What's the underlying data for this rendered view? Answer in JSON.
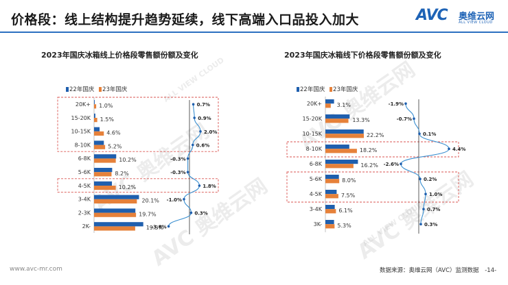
{
  "title": "价格段：线上结构提升趋势延续，线下高端入口品投入加大",
  "logo": {
    "mark": "AVC",
    "name": "奥维云网",
    "tagline": "ALL VIEW CLOUD"
  },
  "watermark": [
    "AVC 奥维云网",
    "ALL VIEW CLOUD"
  ],
  "footer": {
    "website": "www.avc-mr.com",
    "source": "数据来源：奥维云网（AVC）监测数据",
    "page": "-14-"
  },
  "colors": {
    "s22": "#1f5fae",
    "s23": "#e6813a",
    "line": "#3a8fd0",
    "highlight": "#d9534f",
    "axis": "#333333"
  },
  "chart_data": [
    {
      "type": "bar",
      "title": "2023年国庆冰箱线上价格段零售额份额及变化",
      "categories": [
        "20K+",
        "15-20K",
        "10-15K",
        "8-10K",
        "6-8K",
        "5-6K",
        "4-5K",
        "3-4K",
        "2-3K",
        "2K-"
      ],
      "series": [
        {
          "name": "22年国庆",
          "values": [
            0.3,
            0.6,
            2.6,
            4.6,
            10.4,
            8.5,
            8.4,
            21.1,
            19.4,
            23.1
          ]
        },
        {
          "name": "23年国庆",
          "values": [
            1.0,
            1.5,
            4.6,
            5.2,
            10.2,
            8.2,
            10.2,
            20.1,
            19.7,
            19.3
          ]
        }
      ],
      "bar_labels": [
        "1.0%",
        "1.5%",
        "4.6%",
        "5.2%",
        "10.2%",
        "8.2%",
        "10.2%",
        "20.1%",
        "19.7%",
        "19.3%"
      ],
      "change": {
        "values": [
          0.7,
          0.9,
          2.0,
          0.6,
          -0.3,
          -0.3,
          1.8,
          -1.0,
          0.3,
          -3.8
        ],
        "labels": [
          "0.7%",
          "0.9%",
          "2.0%",
          "0.6%",
          "-0.3%",
          "-0.3%",
          "1.8%",
          "-1.0%",
          "0.3%",
          "-3.8%"
        ]
      },
      "highlight_groups": [
        [
          0,
          3
        ],
        [
          6,
          6
        ]
      ],
      "legend": "top-left"
    },
    {
      "type": "bar",
      "title": "2023年国庆冰箱线下价格段零售额份额及变化",
      "categories": [
        "20K+",
        "15-20K",
        "10-15K",
        "8-10K",
        "6-8K",
        "5-6K",
        "4-5K",
        "3-4K",
        "3K-"
      ],
      "series": [
        {
          "name": "22年国庆",
          "values": [
            5.0,
            14.0,
            22.1,
            13.8,
            18.8,
            7.8,
            6.5,
            5.4,
            5.0
          ]
        },
        {
          "name": "23年国庆",
          "values": [
            3.1,
            13.3,
            22.2,
            18.2,
            16.2,
            8.0,
            7.5,
            6.1,
            5.3
          ]
        }
      ],
      "bar_labels": [
        "3.1%",
        "13.3%",
        "22.2%",
        "18.2%",
        "16.2%",
        "8.0%",
        "7.5%",
        "6.1%",
        "5.3%"
      ],
      "change": {
        "values": [
          -1.9,
          -0.7,
          0.1,
          4.4,
          -2.6,
          0.2,
          1.0,
          0.7,
          0.3
        ],
        "labels": [
          "-1.9%",
          "-0.7%",
          "0.1%",
          "4.4%",
          "-2.6%",
          "0.2%",
          "1.0%",
          "0.7%",
          "0.3%"
        ]
      },
      "highlight_groups": [
        [
          3,
          3
        ],
        [
          5,
          6
        ]
      ],
      "legend": "top-left"
    }
  ]
}
